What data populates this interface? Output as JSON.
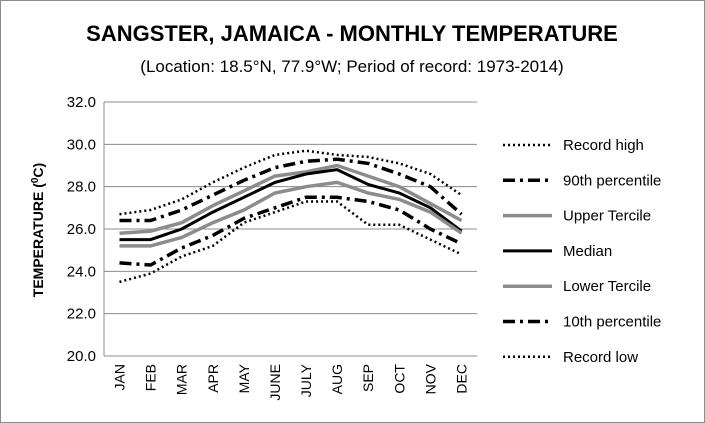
{
  "chart_data": {
    "type": "line",
    "title": "SANGSTER, JAMAICA - MONTHLY TEMPERATURE",
    "subtitle": "(Location: 18.5°N, 77.9°W; Period of record: 1973-2014)",
    "ylabel_main": "TEMPERATURE (",
    "ylabel_sup": "0",
    "ylabel_end": "C)",
    "ylim": [
      20,
      32
    ],
    "yticks": [
      "20.0",
      "22.0",
      "24.0",
      "26.0",
      "28.0",
      "30.0",
      "32.0"
    ],
    "grid": true,
    "legend_position": "right",
    "categories": [
      "JAN",
      "FEB",
      "MAR",
      "APR",
      "MAY",
      "JUNE",
      "JULY",
      "AUG",
      "SEP",
      "OCT",
      "NOV",
      "DEC"
    ],
    "series": [
      {
        "name": "Record high",
        "color": "#000000",
        "style": "dotted",
        "values": [
          26.7,
          26.9,
          27.4,
          28.2,
          28.9,
          29.5,
          29.7,
          29.5,
          29.4,
          29.1,
          28.6,
          27.6
        ]
      },
      {
        "name": "90th percentile",
        "color": "#000000",
        "style": "dashdot",
        "values": [
          26.4,
          26.4,
          26.9,
          27.6,
          28.3,
          28.9,
          29.2,
          29.3,
          29.1,
          28.6,
          28.0,
          26.7
        ]
      },
      {
        "name": "Upper Tercile",
        "color": "#8c8c8c",
        "style": "solid",
        "values": [
          25.8,
          25.9,
          26.3,
          27.1,
          27.8,
          28.5,
          28.7,
          29.0,
          28.5,
          28.0,
          27.2,
          26.4
        ]
      },
      {
        "name": "Median",
        "color": "#000000",
        "style": "solid",
        "values": [
          25.5,
          25.5,
          26.0,
          26.8,
          27.5,
          28.2,
          28.6,
          28.8,
          28.1,
          27.7,
          27.0,
          25.9
        ]
      },
      {
        "name": "Lower Tercile",
        "color": "#8c8c8c",
        "style": "solid",
        "values": [
          25.2,
          25.2,
          25.6,
          26.3,
          26.9,
          27.7,
          28.0,
          28.2,
          27.7,
          27.4,
          26.8,
          25.8
        ]
      },
      {
        "name": "10th percentile",
        "color": "#000000",
        "style": "dashdot",
        "values": [
          24.4,
          24.3,
          25.1,
          25.7,
          26.5,
          27.0,
          27.5,
          27.5,
          27.3,
          26.9,
          26.0,
          25.3
        ]
      },
      {
        "name": "Record low",
        "color": "#000000",
        "style": "dotted",
        "values": [
          23.5,
          23.9,
          24.7,
          25.2,
          26.3,
          26.8,
          27.3,
          27.3,
          26.2,
          26.2,
          25.5,
          24.8
        ]
      }
    ]
  }
}
